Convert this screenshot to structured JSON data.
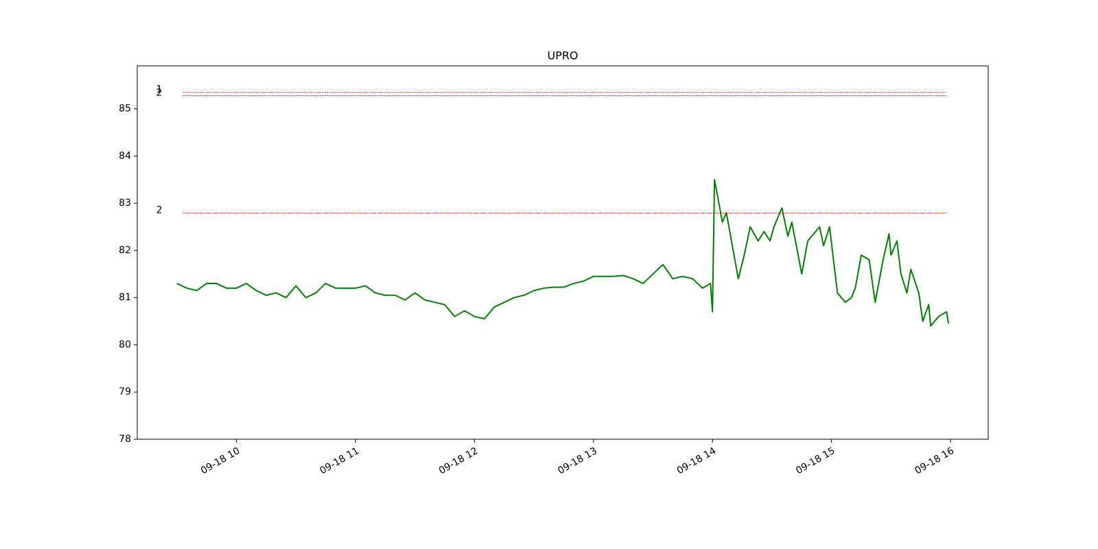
{
  "chart_data": {
    "type": "line",
    "title": "UPRO",
    "x": [
      "09-18 09:30",
      "09-18 09:35",
      "09-18 09:40",
      "09-18 09:45",
      "09-18 09:50",
      "09-18 09:55",
      "09-18 10:00",
      "09-18 10:05",
      "09-18 10:10",
      "09-18 10:15",
      "09-18 10:20",
      "09-18 10:25",
      "09-18 10:30",
      "09-18 10:35",
      "09-18 10:40",
      "09-18 10:45",
      "09-18 10:50",
      "09-18 10:55",
      "09-18 11:00",
      "09-18 11:05",
      "09-18 11:10",
      "09-18 11:15",
      "09-18 11:20",
      "09-18 11:25",
      "09-18 11:30",
      "09-18 11:35",
      "09-18 11:40",
      "09-18 11:45",
      "09-18 11:50",
      "09-18 11:55",
      "09-18 12:00",
      "09-18 12:05",
      "09-18 12:10",
      "09-18 12:15",
      "09-18 12:20",
      "09-18 12:25",
      "09-18 12:30",
      "09-18 12:35",
      "09-18 12:40",
      "09-18 12:45",
      "09-18 12:50",
      "09-18 12:55",
      "09-18 13:00",
      "09-18 13:05",
      "09-18 13:10",
      "09-18 13:15",
      "09-18 13:20",
      "09-18 13:25",
      "09-18 13:30",
      "09-18 13:35",
      "09-18 13:40",
      "09-18 13:45",
      "09-18 13:50",
      "09-18 13:55",
      "09-18 13:59",
      "09-18 14:00",
      "09-18 14:01",
      "09-18 14:05",
      "09-18 14:07",
      "09-18 14:10",
      "09-18 14:13",
      "09-18 14:16",
      "09-18 14:19",
      "09-18 14:23",
      "09-18 14:26",
      "09-18 14:29",
      "09-18 14:31",
      "09-18 14:35",
      "09-18 14:38",
      "09-18 14:40",
      "09-18 14:45",
      "09-18 14:48",
      "09-18 14:54",
      "09-18 14:56",
      "09-18 14:59",
      "09-18 15:01",
      "09-18 15:03",
      "09-18 15:07",
      "09-18 15:10",
      "09-18 15:12",
      "09-18 15:15",
      "09-18 15:19",
      "09-18 15:22",
      "09-18 15:26",
      "09-18 15:29",
      "09-18 15:30",
      "09-18 15:33",
      "09-18 15:35",
      "09-18 15:38",
      "09-18 15:40",
      "09-18 15:44",
      "09-18 15:46",
      "09-18 15:49",
      "09-18 15:50",
      "09-18 15:54",
      "09-18 15:58",
      "09-18 15:59"
    ],
    "series": [
      {
        "color": "green",
        "values": [
          81.3,
          81.2,
          81.15,
          81.3,
          81.3,
          81.2,
          81.2,
          81.3,
          81.15,
          81.05,
          81.1,
          81.0,
          81.25,
          81.0,
          81.1,
          81.3,
          81.2,
          81.2,
          81.2,
          81.25,
          81.1,
          81.05,
          81.05,
          80.95,
          81.1,
          80.95,
          80.9,
          80.85,
          80.6,
          80.72,
          80.6,
          80.55,
          80.8,
          80.9,
          81.0,
          81.05,
          81.15,
          81.2,
          81.22,
          81.22,
          81.3,
          81.35,
          81.45,
          81.45,
          81.45,
          81.47,
          81.4,
          81.3,
          81.5,
          81.7,
          81.4,
          81.45,
          81.4,
          81.2,
          81.3,
          80.7,
          83.5,
          82.6,
          82.8,
          82.1,
          81.4,
          81.9,
          82.5,
          82.2,
          82.4,
          82.2,
          82.5,
          82.9,
          82.3,
          82.6,
          81.5,
          82.2,
          82.5,
          82.1,
          82.5,
          81.8,
          81.1,
          80.9,
          81.0,
          81.2,
          81.9,
          81.8,
          80.9,
          81.8,
          82.35,
          81.9,
          82.2,
          81.5,
          81.1,
          81.6,
          81.1,
          80.5,
          80.85,
          80.4,
          80.6,
          80.7,
          80.45
        ]
      }
    ],
    "hlines": [
      {
        "label": "1",
        "value": 85.35,
        "color": "red"
      },
      {
        "label": "2",
        "value": 85.28,
        "color": "blue"
      },
      {
        "label": "2",
        "value": 82.79,
        "color": "red"
      }
    ],
    "hline_xlim": [
      "09-18 09:33",
      "09-18 15:58"
    ],
    "xlim": [
      "09-18 09:10",
      "09-18 16:19"
    ],
    "xticks": [
      {
        "value": "09-18 10:00",
        "label": "09-18 10"
      },
      {
        "value": "09-18 11:00",
        "label": "09-18 11"
      },
      {
        "value": "09-18 12:00",
        "label": "09-18 12"
      },
      {
        "value": "09-18 13:00",
        "label": "09-18 13"
      },
      {
        "value": "09-18 14:00",
        "label": "09-18 14"
      },
      {
        "value": "09-18 15:00",
        "label": "09-18 15"
      },
      {
        "value": "09-18 16:00",
        "label": "09-18 16"
      }
    ],
    "ylim": [
      78,
      85.91
    ],
    "yticks": [
      78,
      79,
      80,
      81,
      82,
      83,
      84,
      85
    ]
  }
}
